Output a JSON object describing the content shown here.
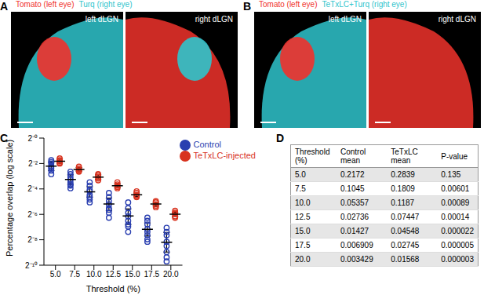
{
  "panels": {
    "A": {
      "letter": "A",
      "legend": [
        {
          "text": "Tomato (left eye)",
          "color": "#f0322c"
        },
        {
          "text": "Turq (right eye)",
          "color": "#2fc4cc"
        }
      ],
      "images": [
        {
          "label": "left dLGN"
        },
        {
          "label": "right dLGN"
        }
      ]
    },
    "B": {
      "letter": "B",
      "legend": [
        {
          "text": "Tomato (left eye)",
          "color": "#f0322c"
        },
        {
          "text": "TeTxLC+Turq (right eye)",
          "color": "#2fc4cc"
        }
      ],
      "images": [
        {
          "label": "left dLGN"
        },
        {
          "label": "right dLGN"
        }
      ]
    }
  },
  "chart_data": {
    "letter": "C",
    "type": "scatter",
    "x_label": "Threshold (%)",
    "y_label": "Percentage overlap (log scale)",
    "log": "y",
    "legend": "top-right",
    "marker": "open_circle",
    "xlim": [
      3.5,
      21.5
    ],
    "xticks": [
      {
        "value": 5,
        "label": "5.0"
      },
      {
        "value": 7.5,
        "label": "7.5"
      },
      {
        "value": 10,
        "label": "10.0"
      },
      {
        "value": 12.5,
        "label": "12.5"
      },
      {
        "value": 15,
        "label": "15.0"
      },
      {
        "value": 17.5,
        "label": "17.5"
      },
      {
        "value": 20,
        "label": "20.0"
      }
    ],
    "ylim": [
      0.0009765625,
      1
    ],
    "yticks": [
      {
        "value": 1,
        "label": "2⁻⁰"
      },
      {
        "value": 0.25,
        "label": "2⁻²"
      },
      {
        "value": 0.0625,
        "label": "2⁻⁴"
      },
      {
        "value": 0.015625,
        "label": "2⁻⁶"
      },
      {
        "value": 0.00390625,
        "label": "2⁻⁸"
      },
      {
        "value": 0.0009765625,
        "label": "2⁻¹⁰"
      }
    ],
    "x": [
      5,
      7.5,
      10,
      12.5,
      15,
      17.5,
      20
    ],
    "series": [
      {
        "name": "Control",
        "color": "#2a3fb0",
        "mean_column": 1,
        "values": [
          [
            0.3,
            0.27,
            0.25,
            0.22,
            0.2,
            0.19,
            0.17,
            0.14
          ],
          [
            0.16,
            0.14,
            0.12,
            0.105,
            0.09,
            0.08,
            0.075,
            0.065
          ],
          [
            0.09,
            0.075,
            0.06,
            0.055,
            0.045,
            0.04,
            0.035,
            0.03
          ],
          [
            0.05,
            0.04,
            0.032,
            0.027,
            0.022,
            0.02,
            0.017,
            0.013
          ],
          [
            0.03,
            0.022,
            0.017,
            0.014,
            0.011,
            0.009,
            0.008,
            0.006
          ],
          [
            0.013,
            0.011,
            0.009,
            0.007,
            0.006,
            0.005,
            0.004,
            0.0035
          ],
          [
            0.0075,
            0.006,
            0.005,
            0.0035,
            0.0028,
            0.002,
            0.0015,
            0.0012
          ]
        ],
        "sd_range": [
          [
            0.17,
            0.27
          ],
          [
            0.08,
            0.135
          ],
          [
            0.04,
            0.07
          ],
          [
            0.019,
            0.038
          ],
          [
            0.009,
            0.021
          ],
          [
            0.0048,
            0.0098
          ],
          [
            0.002,
            0.0058
          ]
        ]
      },
      {
        "name": "TeTxLC-injected",
        "color": "#d8321e",
        "mean_column": 2,
        "values": [
          [
            0.33,
            0.3,
            0.28,
            0.26,
            0.25
          ],
          [
            0.21,
            0.19,
            0.18,
            0.17,
            0.16
          ],
          [
            0.14,
            0.13,
            0.12,
            0.11,
            0.1
          ],
          [
            0.09,
            0.08,
            0.075,
            0.07,
            0.065
          ],
          [
            0.055,
            0.05,
            0.045,
            0.042,
            0.04
          ],
          [
            0.032,
            0.03,
            0.027,
            0.025,
            0.023
          ],
          [
            0.019,
            0.017,
            0.016,
            0.014,
            0.013
          ]
        ],
        "sd_range": [
          [
            0.25,
            0.32
          ],
          [
            0.165,
            0.2
          ],
          [
            0.105,
            0.135
          ],
          [
            0.067,
            0.083
          ],
          [
            0.041,
            0.05
          ],
          [
            0.025,
            0.03
          ],
          [
            0.014,
            0.0175
          ]
        ]
      }
    ]
  },
  "table": {
    "letter": "D",
    "header": [
      "Threshold (%)",
      "Control mean",
      "TeTxLC mean",
      "P-value"
    ],
    "rows": [
      [
        "5.0",
        "0.2172",
        "0.2839",
        "0.135"
      ],
      [
        "7.5",
        "0.1045",
        "0.1809",
        "0.00601"
      ],
      [
        "10.0",
        "0.05357",
        "0.1187",
        "0.00089"
      ],
      [
        "12.5",
        "0.02736",
        "0.07447",
        "0.00014"
      ],
      [
        "15.0",
        "0.01427",
        "0.04548",
        "0.000022"
      ],
      [
        "17.5",
        "0.006909",
        "0.02745",
        "0.000005"
      ],
      [
        "20.0",
        "0.003429",
        "0.01568",
        "0.000003"
      ]
    ]
  }
}
